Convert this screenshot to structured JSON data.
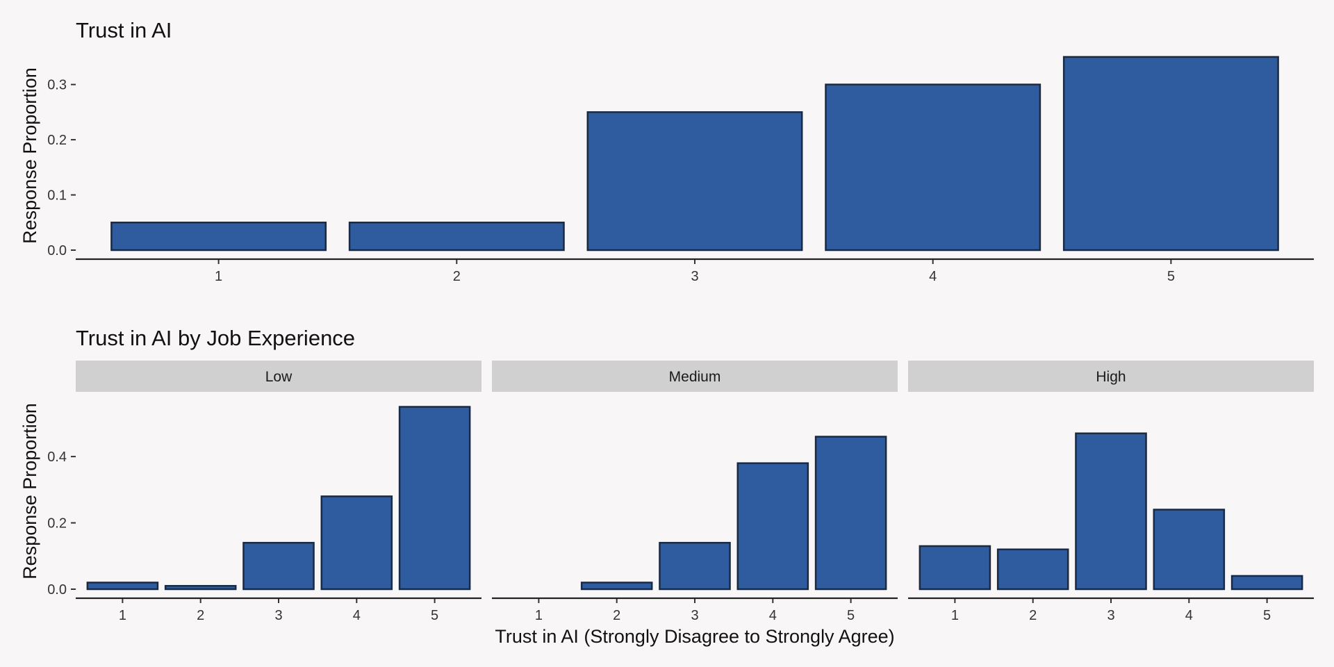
{
  "colors": {
    "bar_fill": "#2f5c9e",
    "bar_stroke": "#1a2a44",
    "strip_fill": "#d0d0d0",
    "background": "#f8f6f6"
  },
  "chart_data": [
    {
      "type": "bar",
      "title": "Trust in AI",
      "ylabel": "Response Proportion",
      "xlabel": "",
      "categories": [
        "1",
        "2",
        "3",
        "4",
        "5"
      ],
      "values": [
        0.05,
        0.05,
        0.25,
        0.3,
        0.35
      ],
      "ylim": [
        0,
        0.365
      ],
      "yticks": [
        0.0,
        0.1,
        0.2,
        0.3
      ],
      "ytick_labels": [
        "0.0",
        "0.1",
        "0.2",
        "0.3"
      ],
      "grid": false,
      "legend": "none"
    },
    {
      "type": "bar",
      "title": "Trust in AI by Job Experience",
      "ylabel": "Response Proportion",
      "xlabel": "Trust in AI (Strongly Disagree to Strongly Agree)",
      "categories": [
        "1",
        "2",
        "3",
        "4",
        "5"
      ],
      "ylim": [
        0,
        0.57
      ],
      "yticks": [
        0.0,
        0.2,
        0.4
      ],
      "ytick_labels": [
        "0.0",
        "0.2",
        "0.4"
      ],
      "grid": false,
      "legend": "none",
      "facets": [
        {
          "name": "Low",
          "values": [
            0.02,
            0.01,
            0.14,
            0.28,
            0.55
          ]
        },
        {
          "name": "Medium",
          "values": [
            0.0,
            0.02,
            0.14,
            0.38,
            0.46
          ]
        },
        {
          "name": "High",
          "values": [
            0.13,
            0.12,
            0.47,
            0.24,
            0.04
          ]
        }
      ]
    }
  ]
}
